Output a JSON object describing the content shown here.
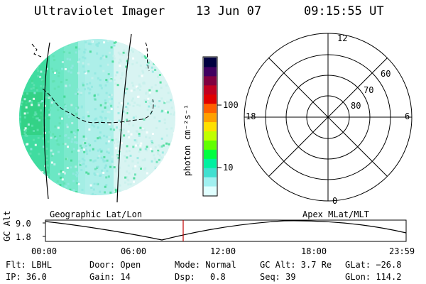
{
  "header": {
    "instrument": "Ultraviolet Imager",
    "date": "13 Jun 07",
    "time": "09:15:55 UT"
  },
  "colorbar": {
    "label": "photon cm⁻²s⁻¹",
    "ticks": [
      "100",
      "10"
    ],
    "colors": [
      "#000040",
      "#400060",
      "#800040",
      "#c00020",
      "#e00000",
      "#ff6000",
      "#ffa000",
      "#ffe000",
      "#c0ff00",
      "#60ff00",
      "#00ff40",
      "#00f0a0",
      "#40e0d0",
      "#a0f0f0",
      "#e0ffff"
    ]
  },
  "polar_plot": {
    "mlt_labels": [
      "12",
      "18",
      "6",
      "0"
    ],
    "lat_labels": [
      "60",
      "70",
      "80"
    ]
  },
  "orbit_plot": {
    "left_title": "Geographic Lat/Lon",
    "right_title": "Apex MLat/MLT",
    "y_axis_label": "GC Alt",
    "y_ticks": [
      "9.0",
      "1.8"
    ],
    "x_ticks": [
      "00:00",
      "06:00",
      "12:00",
      "18:00",
      "23:59"
    ]
  },
  "info": {
    "filter": "Flt: LBHL",
    "ip": "IP: 36.0",
    "door": "Door: Open",
    "gain": "Gain: 14",
    "mode": "Mode: Normal",
    "dsp_label": "Dsp:",
    "dsp_value": "0.8",
    "gc_alt": "GC Alt: 3.7 Re",
    "seq": "Seq: 39",
    "glat": "GLat: −26.8",
    "glon": "GLon: 114.2"
  }
}
